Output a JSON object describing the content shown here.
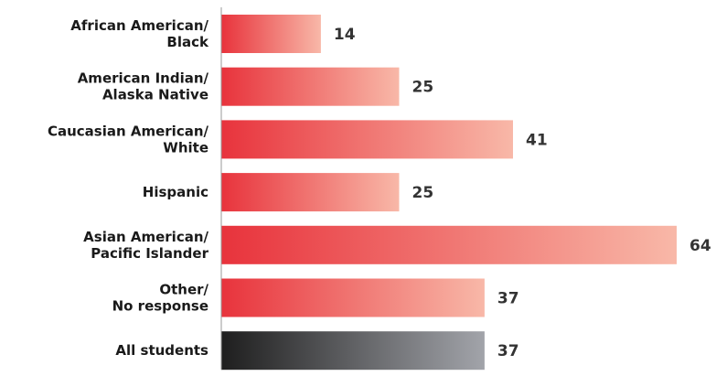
{
  "chart_data": {
    "type": "bar",
    "orientation": "horizontal",
    "categories": [
      [
        "African American/",
        "Black"
      ],
      [
        "American Indian/",
        "Alaska Native"
      ],
      [
        "Caucasian American/",
        "White"
      ],
      [
        "Hispanic"
      ],
      [
        "Asian American/",
        "Pacific Islander"
      ],
      [
        "Other/",
        "No response"
      ],
      [
        "All students"
      ]
    ],
    "values": [
      14,
      25,
      41,
      25,
      64,
      37,
      37
    ],
    "value_labels": [
      "14",
      "25",
      "41",
      "25",
      "64",
      "37",
      "37"
    ],
    "highlight_category_index": 6,
    "xlim": [
      0,
      64
    ],
    "title": "",
    "xlabel": "",
    "ylabel": "",
    "grid": false,
    "legend": "none",
    "colors": {
      "bar_gradient_start": "#e8333c",
      "bar_gradient_end": "#f8b8a8",
      "total_gradient_start": "#1e1e1e",
      "total_gradient_end": "#a2a4aa",
      "axis": "#999999",
      "label": "#1a1a1a",
      "value": "#333333"
    }
  }
}
